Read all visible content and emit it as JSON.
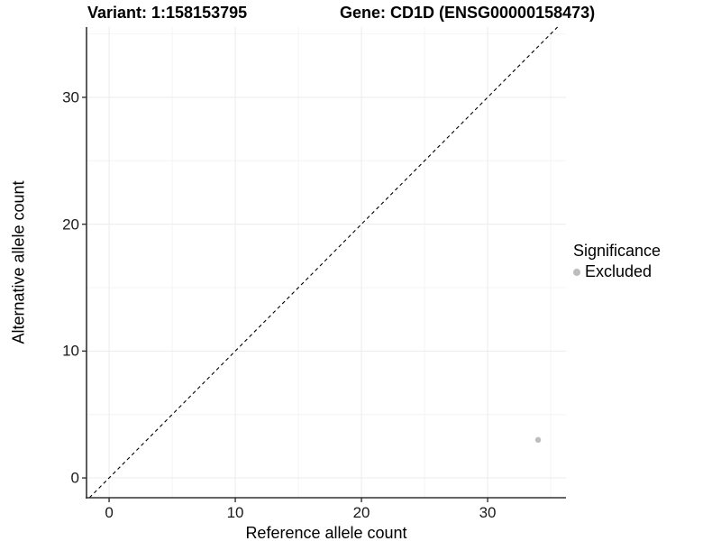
{
  "chart_data": {
    "type": "scatter",
    "variant_title": "Variant: 1:158153795",
    "gene_title": "Gene: CD1D (ENSG00000158473)",
    "xlabel": "Reference allele count",
    "ylabel": "Alternative allele count",
    "x_ticks": [
      0,
      10,
      20,
      30
    ],
    "y_ticks": [
      0,
      10,
      20,
      30
    ],
    "x_minor_ticks": [
      5,
      15,
      25,
      35
    ],
    "y_minor_ticks": [
      5,
      15,
      25,
      35
    ],
    "xlim": [
      -1.79,
      36.21
    ],
    "ylim": [
      -1.56,
      35.54
    ],
    "grid": true,
    "legend_position": "right",
    "reference_line": {
      "type": "identity",
      "slope": 1,
      "intercept": 0,
      "style": "dashed",
      "color": "#000000"
    },
    "series": [
      {
        "name": "Excluded",
        "color": "#bdbdbd",
        "points": [
          {
            "x": 34,
            "y": 3
          }
        ]
      }
    ],
    "legend": {
      "title": "Significance",
      "items": [
        {
          "label": "Excluded",
          "color": "#bdbdbd"
        }
      ]
    }
  },
  "colors": {
    "background": "#ffffff",
    "grid_major": "#ebebeb",
    "grid_minor": "#f4f4f4",
    "axis_line": "#333333",
    "tick_mark": "#333333",
    "tick_text": "#1a1a1a",
    "text": "#000000"
  }
}
